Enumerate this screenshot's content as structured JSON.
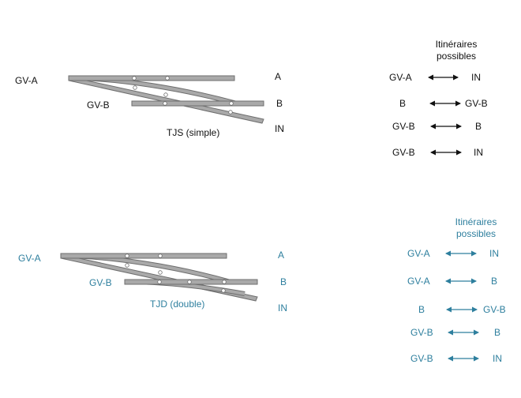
{
  "colors": {
    "black": "#111111",
    "teal": "#2e7f9e",
    "rail_fill": "#a9a9a9",
    "rail_stroke": "#6e6e6e"
  },
  "tjs": {
    "name": "TJS (simple)",
    "labels": {
      "gva": "GV-A",
      "gvb": "GV-B",
      "a": "A",
      "b": "B",
      "in": "IN"
    },
    "routes_title": [
      "Itinéraires",
      "possibles"
    ],
    "routes": [
      {
        "from": "GV-A",
        "to": "IN"
      },
      {
        "from": "B",
        "to": "GV-B"
      },
      {
        "from": "GV-B",
        "to": "B"
      },
      {
        "from": "GV-B",
        "to": "IN"
      }
    ]
  },
  "tjd": {
    "name": "TJD (double)",
    "labels": {
      "gva": "GV-A",
      "gvb": "GV-B",
      "a": "A",
      "b": "B",
      "in": "IN"
    },
    "routes_title": [
      "Itinéraires",
      "possibles"
    ],
    "routes": [
      {
        "from": "GV-A",
        "to": "IN"
      },
      {
        "from": "GV-A",
        "to": "B"
      },
      {
        "from": "B",
        "to": "GV-B"
      },
      {
        "from": "GV-B",
        "to": "B"
      },
      {
        "from": "GV-B",
        "to": "IN"
      }
    ]
  }
}
